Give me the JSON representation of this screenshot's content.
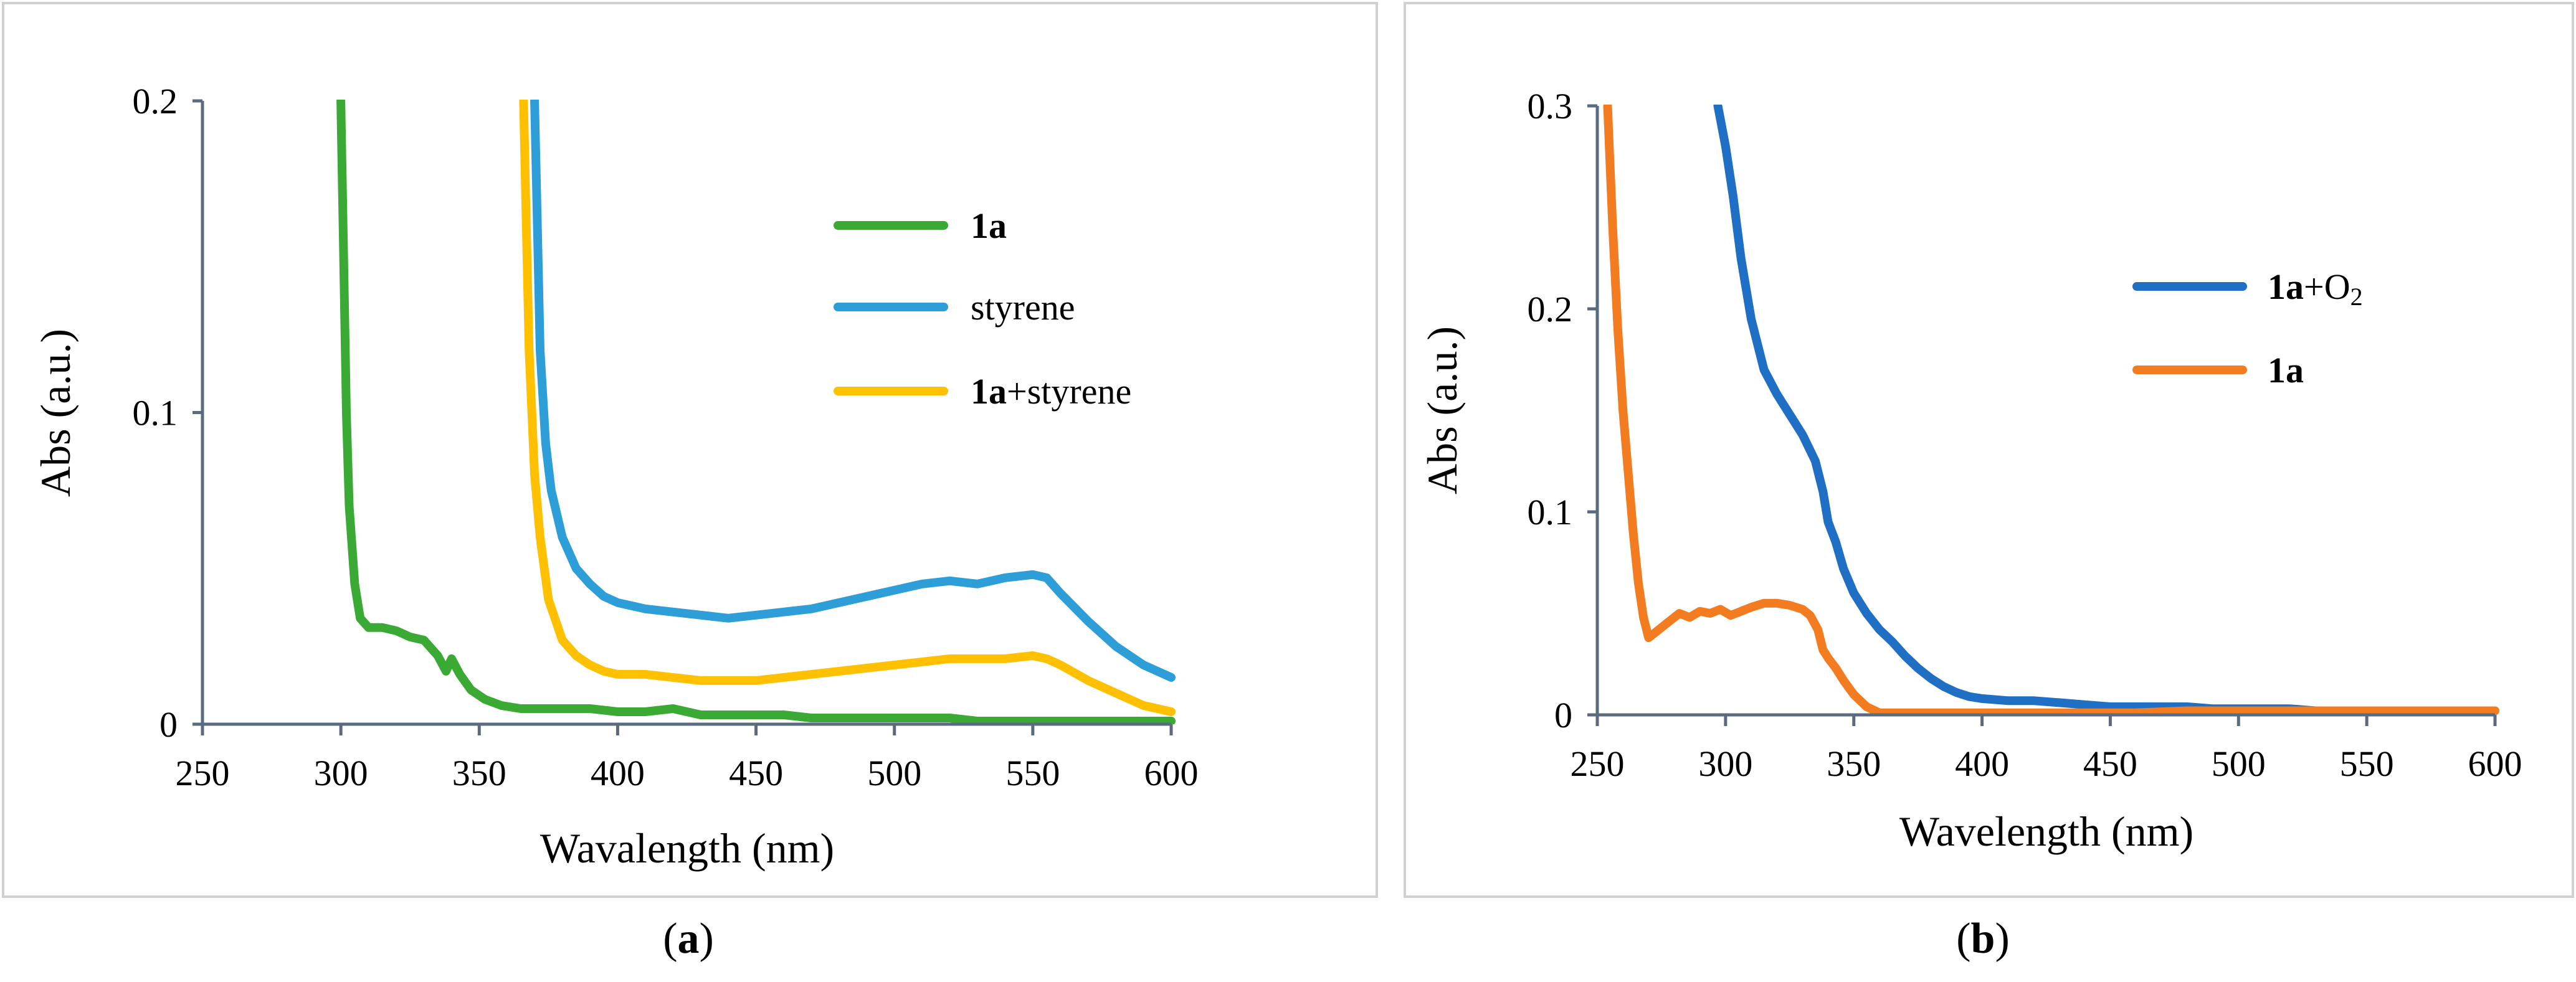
{
  "chart_data": [
    {
      "type": "line",
      "panel_label": "a",
      "caption_open": "(",
      "caption_close": ")",
      "xlabel": "Wavalength (nm)",
      "ylabel": "Abs (a.u.)",
      "xlim": [
        250,
        600
      ],
      "ylim": [
        0,
        0.2
      ],
      "xticks": [
        "250",
        "300",
        "350",
        "400",
        "450",
        "500",
        "550",
        "600"
      ],
      "yticks": [
        "0",
        "0.1",
        "0.2"
      ],
      "legend_position": "right-top",
      "series": [
        {
          "name": "1a",
          "label_parts": [
            {
              "text": "1a",
              "bold": true
            }
          ],
          "color": "#3aaa35",
          "x": [
            300,
            301,
            302,
            303,
            305,
            307,
            310,
            315,
            320,
            325,
            330,
            335,
            338,
            340,
            343,
            347,
            352,
            358,
            365,
            372,
            380,
            390,
            400,
            410,
            420,
            430,
            440,
            450,
            460,
            470,
            480,
            490,
            500,
            510,
            520,
            530,
            540,
            550,
            560,
            570,
            580,
            590,
            600
          ],
          "y": [
            0.2,
            0.15,
            0.1,
            0.07,
            0.045,
            0.034,
            0.031,
            0.031,
            0.03,
            0.028,
            0.027,
            0.022,
            0.017,
            0.021,
            0.016,
            0.011,
            0.008,
            0.006,
            0.005,
            0.005,
            0.005,
            0.005,
            0.004,
            0.004,
            0.005,
            0.003,
            0.003,
            0.003,
            0.003,
            0.002,
            0.002,
            0.002,
            0.002,
            0.002,
            0.002,
            0.001,
            0.001,
            0.001,
            0.001,
            0.001,
            0.001,
            0.001,
            0.001
          ]
        },
        {
          "name": "styrene",
          "label_parts": [
            {
              "text": "styrene",
              "bold": false
            }
          ],
          "color": "#2e9ed8",
          "x": [
            370,
            371,
            372,
            374,
            376,
            380,
            385,
            390,
            395,
            400,
            410,
            420,
            430,
            440,
            450,
            460,
            470,
            480,
            490,
            500,
            510,
            520,
            530,
            540,
            550,
            555,
            560,
            570,
            580,
            590,
            600
          ],
          "y": [
            0.2,
            0.16,
            0.12,
            0.09,
            0.075,
            0.06,
            0.05,
            0.045,
            0.041,
            0.039,
            0.037,
            0.036,
            0.035,
            0.034,
            0.035,
            0.036,
            0.037,
            0.039,
            0.041,
            0.043,
            0.045,
            0.046,
            0.045,
            0.047,
            0.048,
            0.047,
            0.042,
            0.033,
            0.025,
            0.019,
            0.015
          ]
        },
        {
          "name": "1a+styrene",
          "label_parts": [
            {
              "text": "1a",
              "bold": true
            },
            {
              "text": "+styrene",
              "bold": false
            }
          ],
          "color": "#ffc000",
          "x": [
            366,
            367,
            368,
            370,
            372,
            375,
            380,
            385,
            390,
            395,
            400,
            410,
            420,
            430,
            440,
            450,
            460,
            470,
            480,
            490,
            500,
            510,
            520,
            530,
            540,
            550,
            555,
            560,
            570,
            580,
            590,
            600
          ],
          "y": [
            0.2,
            0.16,
            0.12,
            0.08,
            0.06,
            0.04,
            0.027,
            0.022,
            0.019,
            0.017,
            0.016,
            0.016,
            0.015,
            0.014,
            0.014,
            0.014,
            0.015,
            0.016,
            0.017,
            0.018,
            0.019,
            0.02,
            0.021,
            0.021,
            0.021,
            0.022,
            0.021,
            0.019,
            0.014,
            0.01,
            0.006,
            0.004
          ]
        }
      ]
    },
    {
      "type": "line",
      "panel_label": "b",
      "caption_open": "(",
      "caption_close": ")",
      "xlabel": "Wavelength (nm)",
      "ylabel": "Abs (a.u.)",
      "xlim": [
        250,
        600
      ],
      "ylim": [
        0,
        0.3
      ],
      "xticks": [
        "250",
        "300",
        "350",
        "400",
        "450",
        "500",
        "550",
        "600"
      ],
      "yticks": [
        "0",
        "0.1",
        "0.2",
        "0.3"
      ],
      "legend_position": "right-middle",
      "series": [
        {
          "name": "1a+O2",
          "label_parts": [
            {
              "text": "1a",
              "bold": true
            },
            {
              "text": "+O",
              "bold": false
            },
            {
              "text": "2",
              "bold": false,
              "sub": true
            }
          ],
          "color": "#1f6fc5",
          "x": [
            297,
            300,
            303,
            306,
            310,
            315,
            320,
            325,
            330,
            335,
            338,
            340,
            343,
            346,
            350,
            355,
            360,
            365,
            370,
            375,
            380,
            385,
            390,
            395,
            400,
            410,
            420,
            430,
            440,
            450,
            460,
            470,
            480,
            490,
            500,
            510,
            520,
            530,
            540,
            550,
            560,
            570,
            580,
            590,
            600
          ],
          "y": [
            0.3,
            0.28,
            0.255,
            0.225,
            0.195,
            0.17,
            0.158,
            0.148,
            0.138,
            0.125,
            0.11,
            0.095,
            0.085,
            0.072,
            0.06,
            0.05,
            0.042,
            0.036,
            0.029,
            0.023,
            0.018,
            0.014,
            0.011,
            0.009,
            0.008,
            0.007,
            0.007,
            0.006,
            0.005,
            0.004,
            0.004,
            0.004,
            0.004,
            0.003,
            0.003,
            0.003,
            0.003,
            0.002,
            0.002,
            0.002,
            0.002,
            0.002,
            0.002,
            0.002,
            0.002
          ]
        },
        {
          "name": "1a",
          "label_parts": [
            {
              "text": "1a",
              "bold": true
            }
          ],
          "color": "#f47c20",
          "x": [
            254,
            256,
            258,
            260,
            262,
            264,
            266,
            268,
            270,
            272,
            275,
            278,
            282,
            286,
            290,
            294,
            298,
            302,
            306,
            310,
            315,
            320,
            325,
            330,
            333,
            336,
            338,
            340,
            343,
            346,
            350,
            355,
            360,
            365,
            370,
            380,
            390,
            400,
            420,
            440,
            460,
            480,
            500,
            520,
            540,
            560,
            580,
            600
          ],
          "y": [
            0.3,
            0.24,
            0.19,
            0.15,
            0.12,
            0.09,
            0.065,
            0.048,
            0.038,
            0.04,
            0.043,
            0.046,
            0.05,
            0.048,
            0.051,
            0.05,
            0.052,
            0.049,
            0.051,
            0.053,
            0.055,
            0.055,
            0.054,
            0.052,
            0.049,
            0.042,
            0.032,
            0.028,
            0.023,
            0.017,
            0.01,
            0.004,
            0.001,
            0.001,
            0.001,
            0.001,
            0.001,
            0.001,
            0.001,
            0.001,
            0.001,
            0.002,
            0.002,
            0.002,
            0.002,
            0.002,
            0.002,
            0.002
          ]
        }
      ]
    }
  ]
}
